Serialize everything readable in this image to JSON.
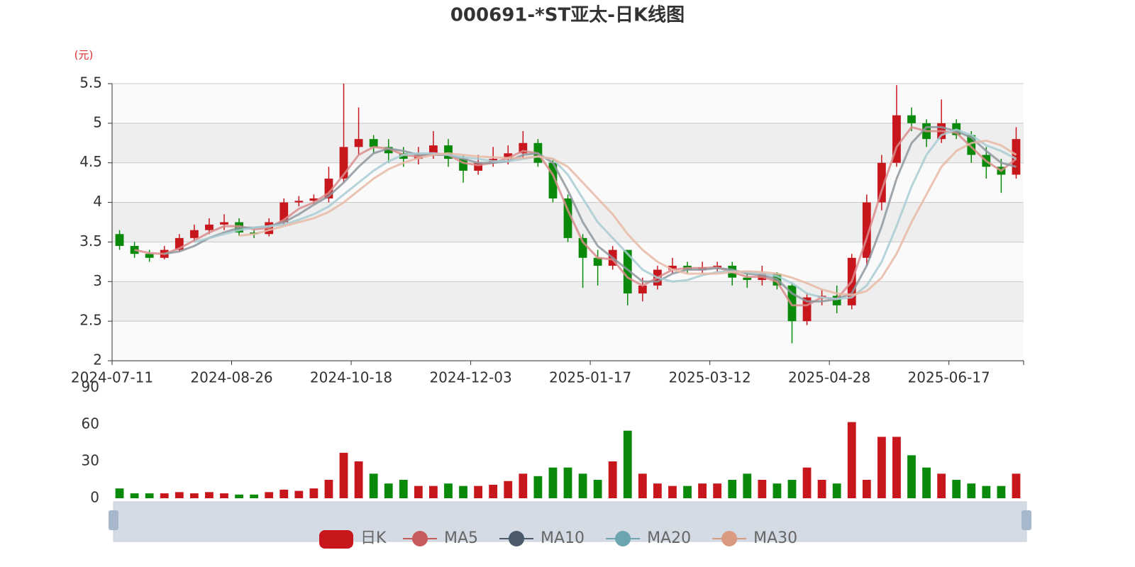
{
  "chart_data": [
    {
      "type": "candlestick",
      "title": "000691-*ST亚太-日K线图",
      "ylabel": "(元)",
      "name": "日K",
      "up_color": "#c8161d",
      "down_color": "#0a8a0a",
      "categories": [
        "2024-07-11",
        null,
        null,
        null,
        null,
        null,
        null,
        null,
        "2024-08-26",
        null,
        null,
        null,
        null,
        null,
        null,
        null,
        "2024-10-18",
        null,
        null,
        null,
        null,
        null,
        null,
        null,
        "2024-12-03",
        null,
        null,
        null,
        null,
        null,
        null,
        null,
        "2025-01-17",
        null,
        null,
        null,
        null,
        null,
        null,
        null,
        "2025-03-12",
        null,
        null,
        null,
        null,
        null,
        null,
        null,
        "2025-04-28",
        null,
        null,
        null,
        null,
        null,
        null,
        null,
        "2025-06-17",
        null,
        null,
        null,
        null
      ],
      "open": [
        3.6,
        3.45,
        3.35,
        3.3,
        3.4,
        3.55,
        3.65,
        3.72,
        3.75,
        3.62,
        3.6,
        3.75,
        4.0,
        4.02,
        4.05,
        4.3,
        4.7,
        4.8,
        4.7,
        4.62,
        4.55,
        4.6,
        4.72,
        4.55,
        4.4,
        4.5,
        4.55,
        4.62,
        4.75,
        4.5,
        4.05,
        3.55,
        3.3,
        3.2,
        3.4,
        2.85,
        2.95,
        3.15,
        3.2,
        3.15,
        3.18,
        3.2,
        3.05,
        3.02,
        3.1,
        2.95,
        2.5,
        2.8,
        2.82,
        2.7,
        3.3,
        4.0,
        4.5,
        5.1,
        5.0,
        4.8,
        5.0,
        4.85,
        4.6,
        4.45,
        4.35
      ],
      "close": [
        3.45,
        3.35,
        3.3,
        3.4,
        3.55,
        3.65,
        3.72,
        3.75,
        3.62,
        3.6,
        3.75,
        4.0,
        4.02,
        4.05,
        4.3,
        4.7,
        4.8,
        4.7,
        4.62,
        4.55,
        4.6,
        4.72,
        4.55,
        4.4,
        4.5,
        4.55,
        4.62,
        4.75,
        4.5,
        4.05,
        3.55,
        3.3,
        3.2,
        3.4,
        2.85,
        2.95,
        3.15,
        3.2,
        3.15,
        3.18,
        3.2,
        3.05,
        3.02,
        3.1,
        2.95,
        2.5,
        2.8,
        2.82,
        2.7,
        3.3,
        4.0,
        4.5,
        5.1,
        5.0,
        4.8,
        5.0,
        4.85,
        4.6,
        4.45,
        4.35,
        4.8
      ],
      "high": [
        3.65,
        3.5,
        3.4,
        3.45,
        3.6,
        3.72,
        3.8,
        3.85,
        3.8,
        3.65,
        3.8,
        4.05,
        4.08,
        4.1,
        4.45,
        5.5,
        5.2,
        4.85,
        4.8,
        4.7,
        4.7,
        4.9,
        4.8,
        4.6,
        4.6,
        4.7,
        4.72,
        4.9,
        4.8,
        4.55,
        4.1,
        3.6,
        3.4,
        3.45,
        3.4,
        3.05,
        3.2,
        3.3,
        3.25,
        3.25,
        3.25,
        3.25,
        3.1,
        3.2,
        3.12,
        2.98,
        2.85,
        2.9,
        2.95,
        3.35,
        4.1,
        4.6,
        5.48,
        5.2,
        5.05,
        5.3,
        5.05,
        4.9,
        4.7,
        4.55,
        4.95
      ],
      "low": [
        3.4,
        3.3,
        3.25,
        3.28,
        3.38,
        3.5,
        3.6,
        3.65,
        3.58,
        3.55,
        3.57,
        3.72,
        3.95,
        3.98,
        4.0,
        4.25,
        4.6,
        4.62,
        4.5,
        4.45,
        4.48,
        4.55,
        4.45,
        4.25,
        4.35,
        4.45,
        4.48,
        4.55,
        4.45,
        4.0,
        3.5,
        2.92,
        2.95,
        3.15,
        2.7,
        2.75,
        2.9,
        3.1,
        3.1,
        3.1,
        3.12,
        2.95,
        2.92,
        2.95,
        2.9,
        2.22,
        2.45,
        2.7,
        2.6,
        2.65,
        3.2,
        3.9,
        4.45,
        4.9,
        4.7,
        4.75,
        4.8,
        4.5,
        4.3,
        4.12,
        4.3
      ],
      "series": [
        {
          "name": "MA5",
          "color": "#d98c8c",
          "legend_color": "#c75a5a",
          "values": [
            null,
            3.4,
            3.36,
            3.35,
            3.42,
            3.52,
            3.62,
            3.7,
            3.7,
            3.66,
            3.68,
            3.78,
            3.92,
            4.0,
            4.12,
            4.35,
            4.6,
            4.7,
            4.68,
            4.6,
            4.58,
            4.62,
            4.6,
            4.5,
            4.47,
            4.5,
            4.56,
            4.65,
            4.62,
            4.35,
            3.9,
            3.5,
            3.3,
            3.28,
            3.05,
            2.95,
            3.05,
            3.15,
            3.17,
            3.17,
            3.18,
            3.12,
            3.06,
            3.06,
            3.0,
            2.7,
            2.7,
            2.8,
            2.78,
            3.0,
            3.55,
            4.15,
            4.7,
            4.95,
            4.9,
            4.9,
            4.88,
            4.7,
            4.52,
            4.4,
            4.55
          ]
        },
        {
          "name": "MA10",
          "color": "#8e969e",
          "legend_color": "#4a5a6a",
          "values": [
            null,
            null,
            null,
            3.35,
            3.38,
            3.45,
            3.55,
            3.62,
            3.68,
            3.68,
            3.7,
            3.75,
            3.85,
            3.97,
            4.08,
            4.25,
            4.45,
            4.62,
            4.68,
            4.65,
            4.6,
            4.6,
            4.6,
            4.55,
            4.5,
            4.5,
            4.52,
            4.6,
            4.62,
            4.5,
            4.15,
            3.75,
            3.45,
            3.3,
            3.15,
            3.0,
            3.0,
            3.1,
            3.15,
            3.15,
            3.17,
            3.15,
            3.1,
            3.08,
            3.03,
            2.85,
            2.75,
            2.75,
            2.78,
            2.85,
            3.2,
            3.7,
            4.3,
            4.75,
            4.95,
            4.95,
            4.9,
            4.82,
            4.65,
            4.5,
            4.45
          ]
        },
        {
          "name": "MA20",
          "color": "#a8cdd3",
          "legend_color": "#6aa5b0",
          "values": [
            null,
            null,
            null,
            null,
            null,
            3.5,
            3.55,
            3.6,
            3.65,
            3.68,
            3.7,
            3.72,
            3.78,
            3.85,
            3.95,
            4.1,
            4.25,
            4.4,
            4.52,
            4.6,
            4.62,
            4.62,
            4.6,
            4.57,
            4.55,
            4.52,
            4.52,
            4.55,
            4.58,
            4.55,
            4.35,
            4.05,
            3.75,
            3.55,
            3.35,
            3.15,
            3.05,
            3.0,
            3.02,
            3.08,
            3.12,
            3.13,
            3.12,
            3.1,
            3.07,
            2.98,
            2.85,
            2.8,
            2.78,
            2.8,
            2.95,
            3.25,
            3.7,
            4.2,
            4.6,
            4.85,
            4.92,
            4.85,
            4.72,
            4.65,
            4.55
          ]
        },
        {
          "name": "MA30",
          "color": "#e8b8a6",
          "legend_color": "#d99a80",
          "values": [
            null,
            null,
            null,
            null,
            null,
            null,
            null,
            null,
            3.58,
            3.6,
            3.65,
            3.7,
            3.75,
            3.8,
            3.88,
            4.0,
            4.15,
            4.3,
            4.42,
            4.5,
            4.56,
            4.6,
            4.62,
            4.6,
            4.58,
            4.57,
            4.56,
            4.56,
            4.58,
            4.55,
            4.45,
            4.25,
            4.05,
            3.85,
            3.6,
            3.4,
            3.25,
            3.15,
            3.1,
            3.1,
            3.1,
            3.12,
            3.13,
            3.12,
            3.1,
            3.05,
            2.98,
            2.9,
            2.85,
            2.83,
            2.88,
            3.05,
            3.35,
            3.75,
            4.1,
            4.45,
            4.65,
            4.75,
            4.78,
            4.72,
            4.6
          ]
        }
      ],
      "ylim": [
        2,
        5.5
      ],
      "yticks": [
        2,
        2.5,
        3,
        3.5,
        4,
        4.5,
        5,
        5.5
      ],
      "grid": true
    },
    {
      "type": "bar",
      "values": [
        8,
        4,
        4,
        4,
        5,
        4,
        5,
        4,
        3,
        3,
        5,
        7,
        6,
        8,
        15,
        37,
        30,
        20,
        12,
        15,
        10,
        10,
        12,
        10,
        10,
        11,
        14,
        20,
        18,
        25,
        25,
        20,
        15,
        30,
        55,
        20,
        12,
        10,
        10,
        12,
        12,
        15,
        20,
        15,
        12,
        15,
        25,
        15,
        12,
        62,
        15,
        50,
        50,
        35,
        25,
        20,
        15,
        12,
        10,
        10,
        20
      ],
      "ylim": [
        0,
        90
      ],
      "yticks": [
        0,
        30,
        60,
        90
      ]
    }
  ]
}
